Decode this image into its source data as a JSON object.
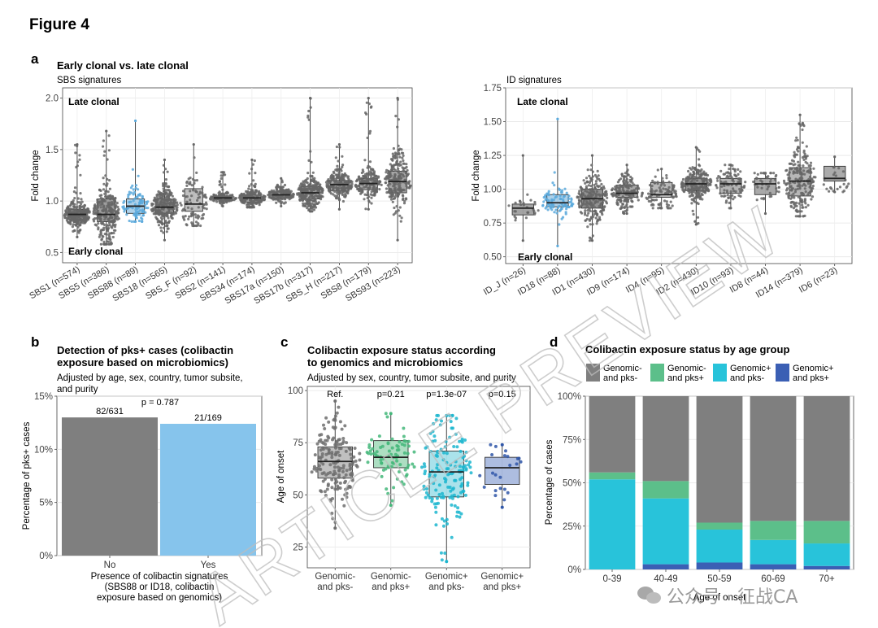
{
  "figure_title": "Figure 4",
  "panel_letters": [
    "a",
    "b",
    "c",
    "d"
  ],
  "watermark": "ARTICLE PREVIEW",
  "wechat_tag": "公众号 · 征战CA",
  "chart_data": [
    {
      "id": "a-left",
      "type": "box",
      "title": "Early clonal vs. late clonal",
      "subtitle": "SBS signatures",
      "ylabel": "Fold change",
      "ylim": [
        0.4,
        2.1
      ],
      "yticks": [
        0.5,
        1.0,
        1.5,
        2.0
      ],
      "ytick_labels": [
        "0.5",
        "1.0",
        "1.5",
        "2.0"
      ],
      "annot_top": "Late clonal",
      "annot_bottom": "Early clonal",
      "categories": [
        "SBS1 (n=574)",
        "SBS5 (n=386)",
        "SBS88 (n=89)",
        "SBS18 (n=565)",
        "SBS_F (n=92)",
        "SBS2 (n=141)",
        "SBS34 (n=174)",
        "SBS17a (n=150)",
        "SBS17b (n=317)",
        "SBS_H (n=217)",
        "SBS8 (n=179)",
        "SBS93 (n=223)"
      ],
      "highlight": [
        false,
        false,
        true,
        false,
        false,
        false,
        false,
        false,
        false,
        false,
        false,
        false
      ],
      "boxes": [
        {
          "q1": 0.82,
          "median": 0.87,
          "q3": 0.92,
          "min": 0.65,
          "max": 1.55,
          "n": 574,
          "color": "#8c8c8c"
        },
        {
          "q1": 0.8,
          "median": 0.87,
          "q3": 1.02,
          "min": 0.58,
          "max": 1.68,
          "n": 386,
          "color": "#9a9a9a"
        },
        {
          "q1": 0.88,
          "median": 0.95,
          "q3": 1.02,
          "min": 0.8,
          "max": 1.78,
          "n": 89,
          "color": "#a9cfe9"
        },
        {
          "q1": 0.88,
          "median": 0.94,
          "q3": 1.02,
          "min": 0.62,
          "max": 1.4,
          "n": 565,
          "color": "#8f8f8f"
        },
        {
          "q1": 0.9,
          "median": 0.97,
          "q3": 1.12,
          "min": 0.76,
          "max": 1.55,
          "n": 92,
          "color": "#bdbdbd"
        },
        {
          "q1": 1.01,
          "median": 1.03,
          "q3": 1.05,
          "min": 0.95,
          "max": 1.28,
          "n": 141,
          "color": "#a4a4a4"
        },
        {
          "q1": 0.99,
          "median": 1.03,
          "q3": 1.06,
          "min": 0.94,
          "max": 1.4,
          "n": 174,
          "color": "#a4a4a4"
        },
        {
          "q1": 1.03,
          "median": 1.06,
          "q3": 1.09,
          "min": 0.95,
          "max": 1.22,
          "n": 150,
          "color": "#a4a4a4"
        },
        {
          "q1": 1.02,
          "median": 1.08,
          "q3": 1.14,
          "min": 0.9,
          "max": 2.0,
          "n": 317,
          "color": "#b3b3b3"
        },
        {
          "q1": 1.1,
          "median": 1.16,
          "q3": 1.2,
          "min": 0.92,
          "max": 1.55,
          "n": 217,
          "color": "#a7a7a7"
        },
        {
          "q1": 1.11,
          "median": 1.17,
          "q3": 1.22,
          "min": 0.92,
          "max": 2.0,
          "n": 179,
          "color": "#a7a7a7"
        },
        {
          "q1": 1.08,
          "median": 1.19,
          "q3": 1.29,
          "min": 0.62,
          "max": 2.0,
          "n": 223,
          "color": "#a0a0a0"
        }
      ]
    },
    {
      "id": "a-right",
      "type": "box",
      "title": "",
      "subtitle": "ID signatures",
      "ylabel": "Fold change",
      "ylim": [
        0.45,
        1.75
      ],
      "yticks": [
        0.5,
        0.75,
        1.0,
        1.25,
        1.5,
        1.75
      ],
      "ytick_labels": [
        "0.50",
        "0.75",
        "1.00",
        "1.25",
        "1.50",
        "1.75"
      ],
      "annot_top": "Late clonal",
      "annot_bottom": "Early clonal",
      "categories": [
        "ID_J (n=26)",
        "ID18 (n=88)",
        "ID1 (n=430)",
        "ID9 (n=174)",
        "ID4 (n=95)",
        "ID2 (n=430)",
        "ID10 (n=93)",
        "ID8 (n=44)",
        "ID14 (n=379)",
        "ID6 (n=23)"
      ],
      "highlight": [
        false,
        true,
        false,
        false,
        false,
        false,
        false,
        false,
        false,
        false
      ],
      "boxes": [
        {
          "q1": 0.81,
          "median": 0.86,
          "q3": 0.89,
          "min": 0.62,
          "max": 1.25,
          "n": 26,
          "color": "#9f9f9f"
        },
        {
          "q1": 0.87,
          "median": 0.9,
          "q3": 0.96,
          "min": 0.58,
          "max": 1.52,
          "n": 88,
          "color": "#a9cfe9"
        },
        {
          "q1": 0.86,
          "median": 0.93,
          "q3": 1.0,
          "min": 0.62,
          "max": 1.25,
          "n": 430,
          "color": "#8c8c8c"
        },
        {
          "q1": 0.94,
          "median": 0.97,
          "q3": 1.03,
          "min": 0.82,
          "max": 1.18,
          "n": 174,
          "color": "#a4a4a4"
        },
        {
          "q1": 0.94,
          "median": 0.96,
          "q3": 1.05,
          "min": 0.86,
          "max": 1.15,
          "n": 95,
          "color": "#b5b5b5"
        },
        {
          "q1": 0.99,
          "median": 1.04,
          "q3": 1.08,
          "min": 0.74,
          "max": 1.31,
          "n": 430,
          "color": "#8f8f8f"
        },
        {
          "q1": 0.97,
          "median": 1.04,
          "q3": 1.08,
          "min": 0.86,
          "max": 1.18,
          "n": 93,
          "color": "#b0b0b0"
        },
        {
          "q1": 0.96,
          "median": 1.04,
          "q3": 1.08,
          "min": 0.82,
          "max": 1.12,
          "n": 44,
          "color": "#a4a4a4"
        },
        {
          "q1": 0.95,
          "median": 1.06,
          "q3": 1.16,
          "min": 0.8,
          "max": 1.55,
          "n": 379,
          "color": "#b3b3b3"
        },
        {
          "q1": 1.06,
          "median": 1.08,
          "q3": 1.17,
          "min": 0.98,
          "max": 1.24,
          "n": 23,
          "color": "#a7a7a7"
        }
      ]
    },
    {
      "id": "b",
      "type": "bar",
      "title": "Detection of pks+ cases (colibactin exposure based on microbiomics)",
      "title_lines": [
        "Detection of pks+ cases (colibactin",
        "exposure based on microbiomics)"
      ],
      "subtitle_lines": [
        "Adjusted by age, sex, country, tumor subsite,",
        "and purity"
      ],
      "ylabel": "Percentage of pks+ cases",
      "xlabel_lines": [
        "Presence of colibactin signatures",
        "(SBS88 or ID18, colibactin",
        "exposure based on genomics)"
      ],
      "categories": [
        "No",
        "Yes"
      ],
      "values": [
        13.0,
        12.4
      ],
      "bar_labels": [
        "82/631",
        "21/169"
      ],
      "colors": [
        "#7f7f7f",
        "#86c4ec"
      ],
      "ylim": [
        0,
        15
      ],
      "yticks": [
        0,
        5,
        10,
        15
      ],
      "ytick_labels": [
        "0%",
        "5%",
        "10%",
        "15%"
      ],
      "pvalue": "p = 0.787"
    },
    {
      "id": "c",
      "type": "box",
      "title_lines": [
        "Colibactin exposure status according",
        "to genomics and microbiomics"
      ],
      "subtitle": "Adjusted by sex, country, tumor subsite, and purity",
      "ylabel": "Age of onset",
      "ylim": [
        15,
        102
      ],
      "yticks": [
        25,
        50,
        75,
        100
      ],
      "ytick_labels": [
        "25",
        "50",
        "75",
        "100"
      ],
      "categories": [
        "Genomic- and pks-",
        "Genomic- and pks+",
        "Genomic+ and pks-",
        "Genomic+ and pks+"
      ],
      "category_lines": [
        [
          "Genomic-",
          "and pks-"
        ],
        [
          "Genomic-",
          "and pks+"
        ],
        [
          "Genomic+",
          "and pks-"
        ],
        [
          "Genomic+",
          "and pks+"
        ]
      ],
      "pvalues": [
        "Ref.",
        "p=0.21",
        "p=1.3e-07",
        "p=0.15"
      ],
      "boxes": [
        {
          "q1": 58,
          "median": 66,
          "q3": 73,
          "min": 34,
          "max": 95,
          "n": 600,
          "color": "#7a7a7a",
          "fill": "#bdbdbd"
        },
        {
          "q1": 63,
          "median": 68,
          "q3": 76,
          "min": 45,
          "max": 89,
          "n": 75,
          "color": "#4bbd83",
          "fill": "#a9dcbf"
        },
        {
          "q1": 49,
          "median": 61,
          "q3": 71,
          "min": 18,
          "max": 88,
          "n": 150,
          "color": "#1fb8d0",
          "fill": "#a5e0ea"
        },
        {
          "q1": 55,
          "median": 63,
          "q3": 68,
          "min": 44,
          "max": 74,
          "n": 22,
          "color": "#3a5fb1",
          "fill": "#a9b9de"
        }
      ]
    },
    {
      "id": "d",
      "type": "bar",
      "stacked": true,
      "title": "Colibactin exposure status by age group",
      "xlabel": "Age of onset",
      "ylabel": "Percentage of cases",
      "categories": [
        "0-39",
        "40-49",
        "50-59",
        "60-69",
        "70+"
      ],
      "ylim": [
        0,
        100
      ],
      "yticks": [
        0,
        25,
        50,
        75,
        100
      ],
      "ytick_labels": [
        "0%",
        "25%",
        "50%",
        "75%",
        "100%"
      ],
      "series": [
        {
          "name": "Genomic+ and pks+",
          "legend_lines": [
            "Genomic+",
            "and pks+"
          ],
          "color": "#3b5fb4",
          "values": [
            0,
            3,
            4,
            3,
            2
          ]
        },
        {
          "name": "Genomic+ and pks-",
          "legend_lines": [
            "Genomic+",
            "and pks-"
          ],
          "color": "#28c3da",
          "values": [
            52,
            38,
            19,
            14,
            13
          ]
        },
        {
          "name": "Genomic- and pks+",
          "legend_lines": [
            "Genomic-",
            "and pks+"
          ],
          "color": "#5cbf8a",
          "values": [
            4,
            10,
            4,
            11,
            13
          ]
        },
        {
          "name": "Genomic- and pks-",
          "legend_lines": [
            "Genomic-",
            "and pks-"
          ],
          "color": "#7f7f7f",
          "values": [
            44,
            49,
            73,
            72,
            72
          ]
        }
      ],
      "legend_order": [
        3,
        2,
        1,
        0
      ]
    }
  ]
}
